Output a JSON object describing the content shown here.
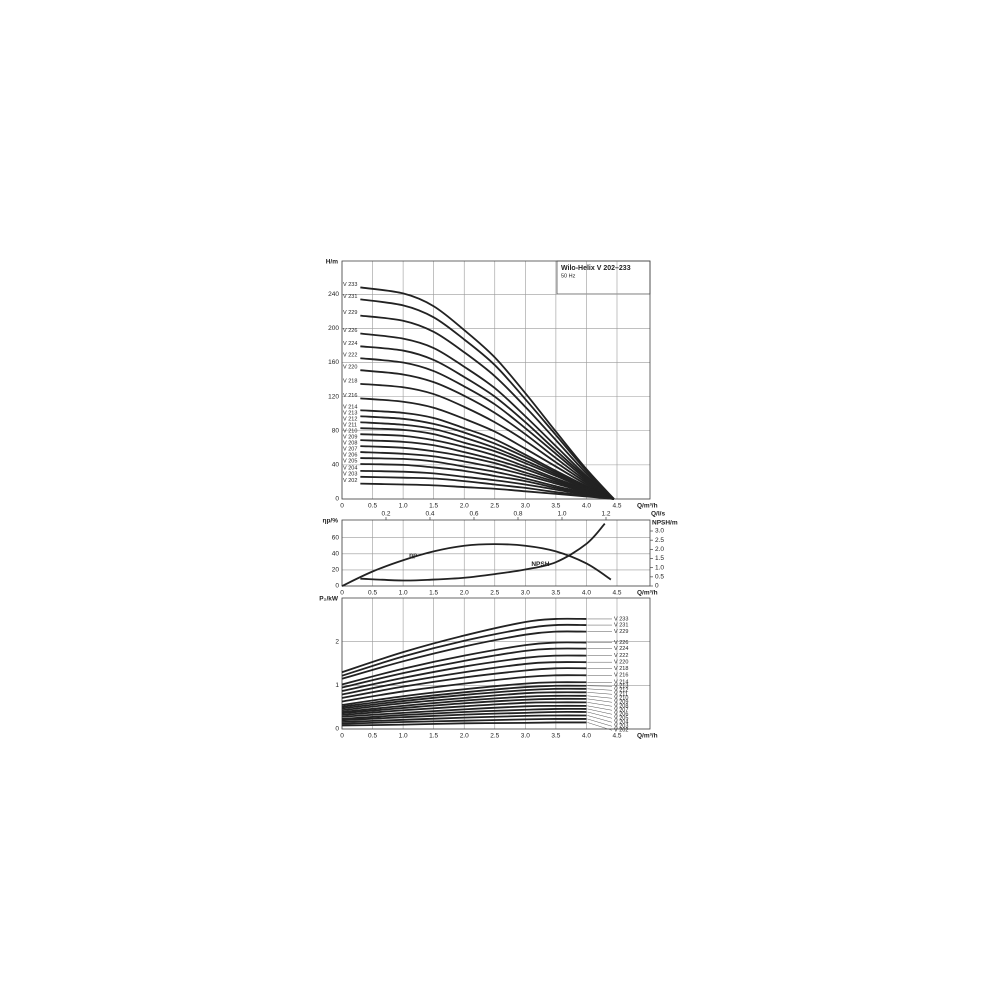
{
  "chart_data": [
    {
      "type": "line",
      "title": "Wilo-Helix V 202–233",
      "subtitle": "50 Hz",
      "xlabel": "Q/m³/h",
      "ylabel": "H/m",
      "color": "#222222",
      "grid": true,
      "xlim": [
        0,
        5.04
      ],
      "ylim": [
        0,
        279
      ],
      "xticks": [
        0,
        0.5,
        {
          "value": 1,
          "label": "1.0"
        },
        1.5,
        {
          "value": 2,
          "label": "2.0"
        },
        2.5,
        {
          "value": 3,
          "label": "3.0"
        },
        3.5,
        {
          "value": 4,
          "label": "4.0"
        },
        4.5
      ],
      "yticks": [
        0,
        40,
        80,
        120,
        160,
        200,
        240
      ],
      "x": [
        0.3,
        1.0,
        1.5,
        2.0,
        2.5,
        3.0,
        3.5,
        4.0,
        4.45
      ],
      "series": [
        {
          "name": "V 233",
          "values": [
            248,
            241,
            226,
            198,
            166,
            124,
            79,
            35,
            0
          ]
        },
        {
          "name": "V 231",
          "values": [
            234,
            227,
            213,
            187,
            157,
            117,
            75,
            33,
            0
          ]
        },
        {
          "name": "V 229",
          "values": [
            215,
            209,
            196,
            172,
            144,
            108,
            69,
            30,
            0
          ]
        },
        {
          "name": "V 226",
          "values": [
            194,
            188,
            177,
            155,
            130,
            97,
            62,
            27,
            0
          ]
        },
        {
          "name": "V 224",
          "values": [
            179,
            174,
            163,
            143,
            120,
            90,
            57,
            25,
            0
          ]
        },
        {
          "name": "V 222",
          "values": [
            165,
            160,
            150,
            132,
            111,
            83,
            53,
            23,
            0
          ]
        },
        {
          "name": "V 220",
          "values": [
            151,
            146,
            137,
            121,
            101,
            76,
            48,
            21,
            0
          ]
        },
        {
          "name": "V 218",
          "values": [
            135,
            131,
            123,
            108,
            90,
            68,
            43,
            19,
            0
          ]
        },
        {
          "name": "V 216",
          "values": [
            118,
            114,
            107,
            94,
            79,
            59,
            38,
            17,
            0
          ]
        },
        {
          "name": "V 214",
          "values": [
            104,
            101,
            95,
            83,
            70,
            52,
            33,
            15,
            0
          ]
        },
        {
          "name": "V 213",
          "values": [
            97,
            94,
            88,
            78,
            65,
            49,
            31,
            14,
            0
          ]
        },
        {
          "name": "V 212",
          "values": [
            90,
            87,
            82,
            72,
            60,
            45,
            29,
            13,
            0
          ]
        },
        {
          "name": "V 211",
          "values": [
            83,
            81,
            76,
            66,
            56,
            42,
            27,
            12,
            0
          ]
        },
        {
          "name": "V 210",
          "values": [
            76,
            74,
            69,
            61,
            51,
            38,
            24,
            11,
            0
          ]
        },
        {
          "name": "V 209",
          "values": [
            69,
            67,
            63,
            55,
            46,
            35,
            22,
            10,
            0
          ]
        },
        {
          "name": "V 208",
          "values": [
            62,
            60,
            56,
            50,
            42,
            31,
            20,
            9,
            0
          ]
        },
        {
          "name": "V 207",
          "values": [
            55,
            53,
            50,
            44,
            37,
            28,
            18,
            8,
            0
          ]
        },
        {
          "name": "V 206",
          "values": [
            48,
            47,
            44,
            38,
            32,
            24,
            15,
            7,
            0
          ]
        },
        {
          "name": "V 205",
          "values": [
            41,
            40,
            37,
            33,
            27,
            21,
            13,
            6,
            0
          ]
        },
        {
          "name": "V 204",
          "values": [
            33,
            32,
            30,
            26,
            22,
            17,
            11,
            5,
            0
          ]
        },
        {
          "name": "V 203",
          "values": [
            26,
            25,
            24,
            21,
            17,
            13,
            8,
            4,
            0
          ]
        },
        {
          "name": "V 202",
          "values": [
            18,
            17,
            16,
            14,
            12,
            9,
            6,
            3,
            0
          ]
        }
      ]
    },
    {
      "type": "line",
      "xlabel": "Q/m³/h",
      "ylabel": "ηp/%",
      "y2label": "NPSH/m",
      "x2label": "Q/l/s",
      "color": "#222222",
      "grid": true,
      "xlim": [
        0,
        5.04
      ],
      "ylim": [
        0,
        82
      ],
      "y2lim": [
        0,
        3.6
      ],
      "x2lim": [
        0,
        1.4
      ],
      "xticks": [
        0,
        0.5,
        {
          "value": 1,
          "label": "1.0"
        },
        1.5,
        {
          "value": 2,
          "label": "2.0"
        },
        2.5,
        {
          "value": 3,
          "label": "3.0"
        },
        3.5,
        {
          "value": 4,
          "label": "4.0"
        },
        4.5
      ],
      "x2ticks": [
        0.2,
        0.4,
        0.6,
        0.8,
        {
          "value": 1,
          "label": "1.0"
        },
        1.2
      ],
      "yticks": [
        0,
        20,
        40,
        60
      ],
      "y2ticks": [
        0,
        0.5,
        {
          "value": 1,
          "label": "1.0"
        },
        1.5,
        {
          "value": 2,
          "label": "2.0"
        },
        2.5,
        {
          "value": 3,
          "label": "3.0"
        }
      ],
      "series": [
        {
          "name": "ηp",
          "x": [
            0,
            0.5,
            1.0,
            1.5,
            2.0,
            2.5,
            3.0,
            3.5,
            4.0,
            4.4
          ],
          "values": [
            0,
            18,
            32,
            43,
            50,
            52,
            50,
            43,
            28,
            8
          ]
        },
        {
          "name": "NPSH",
          "axis": "y2",
          "x": [
            0.3,
            1.0,
            1.5,
            2.0,
            2.5,
            3.0,
            3.5,
            4.0,
            4.3
          ],
          "values": [
            0.4,
            0.3,
            0.35,
            0.45,
            0.65,
            0.9,
            1.3,
            2.3,
            3.4
          ]
        }
      ]
    },
    {
      "type": "line",
      "xlabel": "Q/m³/h",
      "ylabel": "P₂/kW",
      "color": "#222222",
      "grid": true,
      "xlim": [
        0,
        5.04
      ],
      "ylim": [
        0,
        3.0
      ],
      "xticks": [
        0,
        0.5,
        {
          "value": 1,
          "label": "1.0"
        },
        1.5,
        {
          "value": 2,
          "label": "2.0"
        },
        2.5,
        {
          "value": 3,
          "label": "3.0"
        },
        3.5,
        {
          "value": 4,
          "label": "4.0"
        },
        4.5
      ],
      "yticks": [
        0,
        1,
        2
      ],
      "x": [
        0,
        1.0,
        2.0,
        3.0,
        3.5,
        4.0
      ],
      "series": [
        {
          "name": "V 233",
          "values": [
            1.3,
            1.76,
            2.14,
            2.45,
            2.52,
            2.52
          ]
        },
        {
          "name": "V 231",
          "values": [
            1.22,
            1.66,
            2.02,
            2.3,
            2.38,
            2.38
          ]
        },
        {
          "name": "V 229",
          "values": [
            1.15,
            1.55,
            1.89,
            2.16,
            2.23,
            2.23
          ]
        },
        {
          "name": "V 226",
          "values": [
            1.02,
            1.38,
            1.68,
            1.92,
            1.98,
            1.98
          ]
        },
        {
          "name": "V 224",
          "values": [
            0.95,
            1.28,
            1.56,
            1.79,
            1.84,
            1.84
          ]
        },
        {
          "name": "V 222",
          "values": [
            0.87,
            1.17,
            1.43,
            1.63,
            1.68,
            1.68
          ]
        },
        {
          "name": "V 220",
          "values": [
            0.79,
            1.07,
            1.3,
            1.49,
            1.53,
            1.53
          ]
        },
        {
          "name": "V 218",
          "values": [
            0.71,
            0.97,
            1.18,
            1.34,
            1.39,
            1.39
          ]
        },
        {
          "name": "V 216",
          "values": [
            0.63,
            0.86,
            1.04,
            1.19,
            1.23,
            1.23
          ]
        },
        {
          "name": "V 214",
          "values": [
            0.55,
            0.75,
            0.91,
            1.04,
            1.07,
            1.07
          ]
        },
        {
          "name": "V 213",
          "values": [
            0.51,
            0.69,
            0.84,
            0.96,
            0.99,
            0.99
          ]
        },
        {
          "name": "V 212",
          "values": [
            0.47,
            0.64,
            0.78,
            0.89,
            0.92,
            0.92
          ]
        },
        {
          "name": "V 211",
          "values": [
            0.43,
            0.59,
            0.71,
            0.82,
            0.84,
            0.84
          ]
        },
        {
          "name": "V 210",
          "values": [
            0.39,
            0.53,
            0.65,
            0.74,
            0.76,
            0.76
          ]
        },
        {
          "name": "V 209",
          "values": [
            0.36,
            0.48,
            0.59,
            0.67,
            0.69,
            0.69
          ]
        },
        {
          "name": "V 208",
          "values": [
            0.32,
            0.43,
            0.52,
            0.6,
            0.61,
            0.61
          ]
        },
        {
          "name": "V 207",
          "values": [
            0.28,
            0.37,
            0.45,
            0.52,
            0.53,
            0.53
          ]
        },
        {
          "name": "V 206",
          "values": [
            0.23,
            0.32,
            0.39,
            0.44,
            0.46,
            0.46
          ]
        },
        {
          "name": "V 205",
          "values": [
            0.2,
            0.27,
            0.33,
            0.37,
            0.39,
            0.39
          ]
        },
        {
          "name": "V 204",
          "values": [
            0.16,
            0.21,
            0.26,
            0.3,
            0.31,
            0.31
          ]
        },
        {
          "name": "V 203",
          "values": [
            0.12,
            0.16,
            0.19,
            0.22,
            0.23,
            0.23
          ]
        },
        {
          "name": "V 202",
          "values": [
            0.08,
            0.1,
            0.13,
            0.14,
            0.15,
            0.15
          ]
        }
      ]
    }
  ]
}
